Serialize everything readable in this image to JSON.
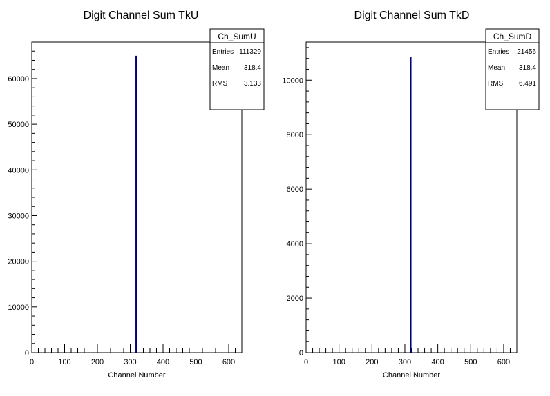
{
  "chart_data": [
    {
      "type": "bar",
      "title": "Digit Channel Sum TkU",
      "xlabel": "Channel Number",
      "ylabel": "",
      "xlim": [
        0,
        640
      ],
      "ylim": [
        0,
        68000
      ],
      "x_ticks": [
        0,
        100,
        200,
        300,
        400,
        500,
        600
      ],
      "y_ticks": [
        0,
        10000,
        20000,
        30000,
        40000,
        50000,
        60000
      ],
      "series": [
        {
          "x": [
            318
          ],
          "values": [
            65000
          ]
        }
      ],
      "bar_color": "#000080",
      "stats": {
        "name": "Ch_SumU",
        "rows": [
          {
            "label": "Entries",
            "value": "111329"
          },
          {
            "label": "Mean",
            "value": "318.4"
          },
          {
            "label": "RMS",
            "value": "3.133"
          }
        ]
      },
      "grid": false,
      "legend": "top-right"
    },
    {
      "type": "bar",
      "title": "Digit Channel Sum TkD",
      "xlabel": "Channel Number",
      "ylabel": "",
      "xlim": [
        0,
        640
      ],
      "ylim": [
        0,
        11400
      ],
      "x_ticks": [
        0,
        100,
        200,
        300,
        400,
        500,
        600
      ],
      "y_ticks": [
        0,
        2000,
        4000,
        6000,
        8000,
        10000
      ],
      "series": [
        {
          "x": [
            318
          ],
          "values": [
            10850
          ]
        }
      ],
      "bar_color": "#000080",
      "stats": {
        "name": "Ch_SumD",
        "rows": [
          {
            "label": "Entries",
            "value": "21456"
          },
          {
            "label": "Mean",
            "value": "318.4"
          },
          {
            "label": "RMS",
            "value": "6.491"
          }
        ]
      },
      "grid": false,
      "legend": "top-right"
    }
  ]
}
